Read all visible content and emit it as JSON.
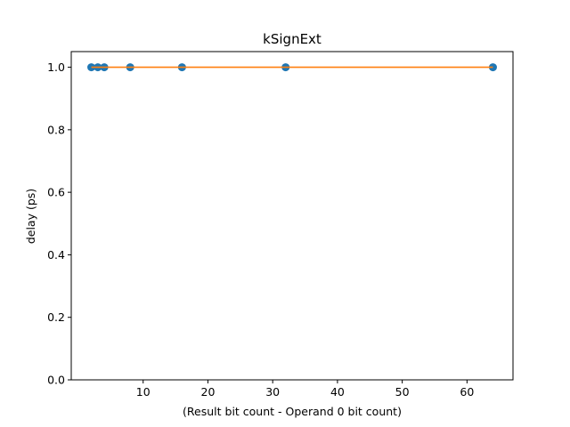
{
  "chart_data": {
    "type": "scatter",
    "title": "kSignExt",
    "xlabel": "(Result bit count - Operand 0 bit count)",
    "ylabel": "delay (ps)",
    "xlim": [
      -1.1,
      67.1
    ],
    "ylim": [
      0,
      1.05
    ],
    "xticks": [
      10,
      20,
      30,
      40,
      50,
      60
    ],
    "xtick_labels": [
      "10",
      "20",
      "30",
      "40",
      "50",
      "60"
    ],
    "yticks": [
      0.0,
      0.2,
      0.4,
      0.6,
      0.8,
      1.0
    ],
    "ytick_labels": [
      "0.0",
      "0.2",
      "0.4",
      "0.6",
      "0.8",
      "1.0"
    ],
    "grid": false,
    "series": [
      {
        "kind": "scatter",
        "color": "#1f77b4",
        "x": [
          2,
          3,
          4,
          8,
          16,
          32,
          64
        ],
        "y": [
          1,
          1,
          1,
          1,
          1,
          1,
          1
        ]
      },
      {
        "kind": "line",
        "color": "#ff7f0e",
        "x": [
          2,
          64
        ],
        "y": [
          1,
          1
        ]
      }
    ]
  }
}
